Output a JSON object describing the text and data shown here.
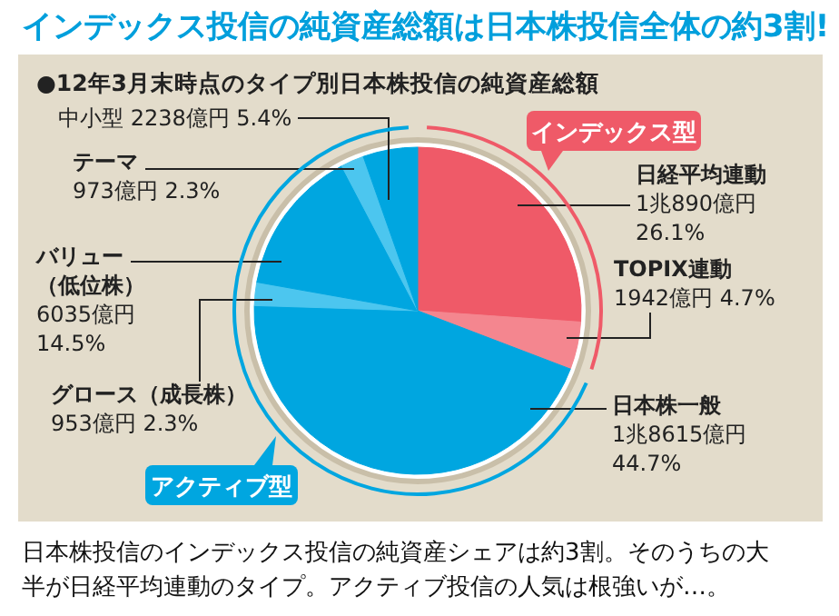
{
  "chart_data": {
    "type": "pie",
    "title": "インデックス投信の純資産総額は日本株投信全体の約3割!",
    "subtitle": "●12年3月末時点のタイプ別日本株投信の純資産総額",
    "categories": [
      "日経平均連動",
      "TOPIX連動",
      "日本株一般",
      "グロース（成長株）",
      "バリュー（低位株）",
      "テーマ",
      "中小型"
    ],
    "values": [
      26.1,
      4.7,
      44.7,
      2.3,
      14.5,
      2.3,
      5.4
    ],
    "value_labels": [
      "1兆890億円 26.1%",
      "1942億円 4.7%",
      "1兆8615億円 44.7%",
      "953億円 2.3%",
      "6035億円 14.5%",
      "973億円 2.3%",
      "2238億円 5.4%"
    ],
    "colors": [
      "#ef5a68",
      "#f4868f",
      "#00a6e0",
      "#4cc6ef",
      "#00a6e0",
      "#4cc6ef",
      "#00a6e0"
    ],
    "annotations": [
      "インデックス型",
      "アクティブ型",
      "日本株投信のインデックス投信の純資産シェアは約3割。そのうちの大半が日経平均連動のタイプ。アクティブ投信の人気は根強いが…。"
    ]
  }
}
